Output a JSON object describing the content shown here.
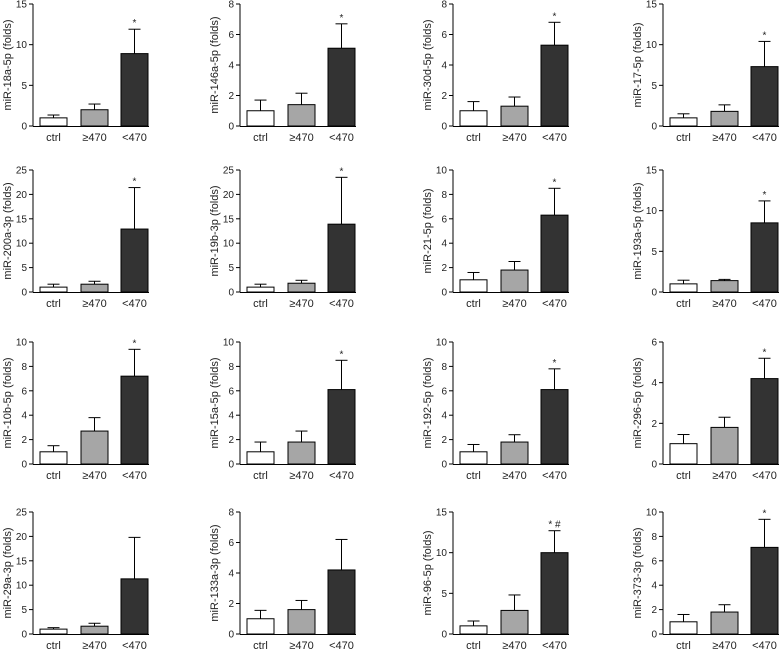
{
  "colors": {
    "ctrl": "#ffffff",
    "mid": "#a6a6a6",
    "high": "#333333",
    "axis": "#000000"
  },
  "chart_data": [
    {
      "type": "bar",
      "ylabel": "miR-18a-5p (folds)",
      "categories": [
        "ctrl",
        "≥470",
        "<470"
      ],
      "values": [
        1.0,
        2.0,
        8.9
      ],
      "errors": [
        0.35,
        0.7,
        3.0
      ],
      "ylim": [
        0,
        15
      ],
      "yticks": [
        0,
        5,
        10,
        15
      ],
      "annotations": [
        "",
        "",
        "*"
      ]
    },
    {
      "type": "bar",
      "ylabel": "miR-146a-5p (folds)",
      "categories": [
        "ctrl",
        "≥470",
        "<470"
      ],
      "values": [
        1.0,
        1.4,
        5.1
      ],
      "errors": [
        0.7,
        0.75,
        1.6
      ],
      "ylim": [
        0,
        8
      ],
      "yticks": [
        0,
        2,
        4,
        6,
        8
      ],
      "annotations": [
        "",
        "",
        "*"
      ]
    },
    {
      "type": "bar",
      "ylabel": "miR-30d-5p (folds)",
      "categories": [
        "ctrl",
        "≥470",
        "<470"
      ],
      "values": [
        1.0,
        1.3,
        5.3
      ],
      "errors": [
        0.6,
        0.6,
        1.5
      ],
      "ylim": [
        0,
        8
      ],
      "yticks": [
        0,
        2,
        4,
        6,
        8
      ],
      "annotations": [
        "",
        "",
        "*"
      ]
    },
    {
      "type": "bar",
      "ylabel": "miR-17-5p (folds)",
      "categories": [
        "ctrl",
        "≥470",
        "<470"
      ],
      "values": [
        1.0,
        1.8,
        7.3
      ],
      "errors": [
        0.5,
        0.8,
        3.1
      ],
      "ylim": [
        0,
        15
      ],
      "yticks": [
        0,
        5,
        10,
        15
      ],
      "annotations": [
        "",
        "",
        "*"
      ]
    },
    {
      "type": "bar",
      "ylabel": "miR-200a-3p (folds)",
      "categories": [
        "ctrl",
        "≥470",
        "<470"
      ],
      "values": [
        1.0,
        1.6,
        12.9
      ],
      "errors": [
        0.6,
        0.6,
        8.5
      ],
      "ylim": [
        0,
        25
      ],
      "yticks": [
        0,
        5,
        10,
        15,
        20,
        25
      ],
      "annotations": [
        "",
        "",
        "*"
      ]
    },
    {
      "type": "bar",
      "ylabel": "miR-19b-3p (folds)",
      "categories": [
        "ctrl",
        "≥470",
        "<470"
      ],
      "values": [
        1.0,
        1.8,
        13.9
      ],
      "errors": [
        0.6,
        0.6,
        9.6
      ],
      "ylim": [
        0,
        25
      ],
      "yticks": [
        0,
        5,
        10,
        15,
        20,
        25
      ],
      "annotations": [
        "",
        "",
        "*"
      ]
    },
    {
      "type": "bar",
      "ylabel": "miR-21-5p (folds)",
      "categories": [
        "ctrl",
        "≥470",
        "<470"
      ],
      "values": [
        1.0,
        1.8,
        6.3
      ],
      "errors": [
        0.6,
        0.7,
        2.2
      ],
      "ylim": [
        0,
        10
      ],
      "yticks": [
        0,
        2,
        4,
        6,
        8,
        10
      ],
      "annotations": [
        "",
        "",
        "*"
      ]
    },
    {
      "type": "bar",
      "ylabel": "miR-193a-5p (folds)",
      "categories": [
        "ctrl",
        "≥470",
        "<470"
      ],
      "values": [
        1.0,
        1.4,
        8.5
      ],
      "errors": [
        0.45,
        0.15,
        2.7
      ],
      "ylim": [
        0,
        15
      ],
      "yticks": [
        0,
        5,
        10,
        15
      ],
      "annotations": [
        "",
        "",
        "*"
      ]
    },
    {
      "type": "bar",
      "ylabel": "miR-10b-5p (folds)",
      "categories": [
        "ctrl",
        "≥470",
        "<470"
      ],
      "values": [
        1.0,
        2.7,
        7.2
      ],
      "errors": [
        0.5,
        1.1,
        2.2
      ],
      "ylim": [
        0,
        10
      ],
      "yticks": [
        0,
        2,
        4,
        6,
        8,
        10
      ],
      "annotations": [
        "",
        "",
        "*"
      ]
    },
    {
      "type": "bar",
      "ylabel": "miR-15a-5p (folds)",
      "categories": [
        "ctrl",
        "≥470",
        "<470"
      ],
      "values": [
        1.0,
        1.8,
        6.1
      ],
      "errors": [
        0.8,
        0.9,
        2.4
      ],
      "ylim": [
        0,
        10
      ],
      "yticks": [
        0,
        2,
        4,
        6,
        8,
        10
      ],
      "annotations": [
        "",
        "",
        "*"
      ]
    },
    {
      "type": "bar",
      "ylabel": "miR-192-5p (folds)",
      "categories": [
        "ctrl",
        "≥470",
        "<470"
      ],
      "values": [
        1.0,
        1.8,
        6.1
      ],
      "errors": [
        0.6,
        0.6,
        1.7
      ],
      "ylim": [
        0,
        10
      ],
      "yticks": [
        0,
        2,
        4,
        6,
        8,
        10
      ],
      "annotations": [
        "",
        "",
        "*"
      ]
    },
    {
      "type": "bar",
      "ylabel": "miR-296-5p (folds)",
      "categories": [
        "ctrl",
        "≥470",
        "<470"
      ],
      "values": [
        1.0,
        1.8,
        4.2
      ],
      "errors": [
        0.45,
        0.5,
        1.0
      ],
      "ylim": [
        0,
        6
      ],
      "yticks": [
        0,
        2,
        4,
        6
      ],
      "annotations": [
        "",
        "",
        "*"
      ]
    },
    {
      "type": "bar",
      "ylabel": "miR-29a-3p (folds)",
      "categories": [
        "ctrl",
        "≥470",
        "<470"
      ],
      "values": [
        1.0,
        1.6,
        11.3
      ],
      "errors": [
        0.3,
        0.6,
        8.5
      ],
      "ylim": [
        0,
        25
      ],
      "yticks": [
        0,
        5,
        10,
        15,
        20,
        25
      ],
      "annotations": [
        "",
        "",
        ""
      ]
    },
    {
      "type": "bar",
      "ylabel": "miR-133a-3p (folds)",
      "categories": [
        "ctrl",
        "≥470",
        "<470"
      ],
      "values": [
        1.0,
        1.6,
        4.2
      ],
      "errors": [
        0.55,
        0.6,
        2.0
      ],
      "ylim": [
        0,
        8
      ],
      "yticks": [
        0,
        2,
        4,
        6,
        8
      ],
      "annotations": [
        "",
        "",
        ""
      ]
    },
    {
      "type": "bar",
      "ylabel": "miR-96-5p (folds)",
      "categories": [
        "ctrl",
        "≥470",
        "<470"
      ],
      "values": [
        1.0,
        2.9,
        10.0
      ],
      "errors": [
        0.6,
        1.9,
        2.7
      ],
      "ylim": [
        0,
        15
      ],
      "yticks": [
        0,
        5,
        10,
        15
      ],
      "annotations": [
        "",
        "",
        "* #"
      ]
    },
    {
      "type": "bar",
      "ylabel": "miR-373-3p (folds)",
      "categories": [
        "ctrl",
        "≥470",
        "<470"
      ],
      "values": [
        1.0,
        1.8,
        7.1
      ],
      "errors": [
        0.6,
        0.6,
        2.3
      ],
      "ylim": [
        0,
        10
      ],
      "yticks": [
        0,
        2,
        4,
        6,
        8,
        10
      ],
      "annotations": [
        "",
        "",
        "*"
      ]
    }
  ]
}
